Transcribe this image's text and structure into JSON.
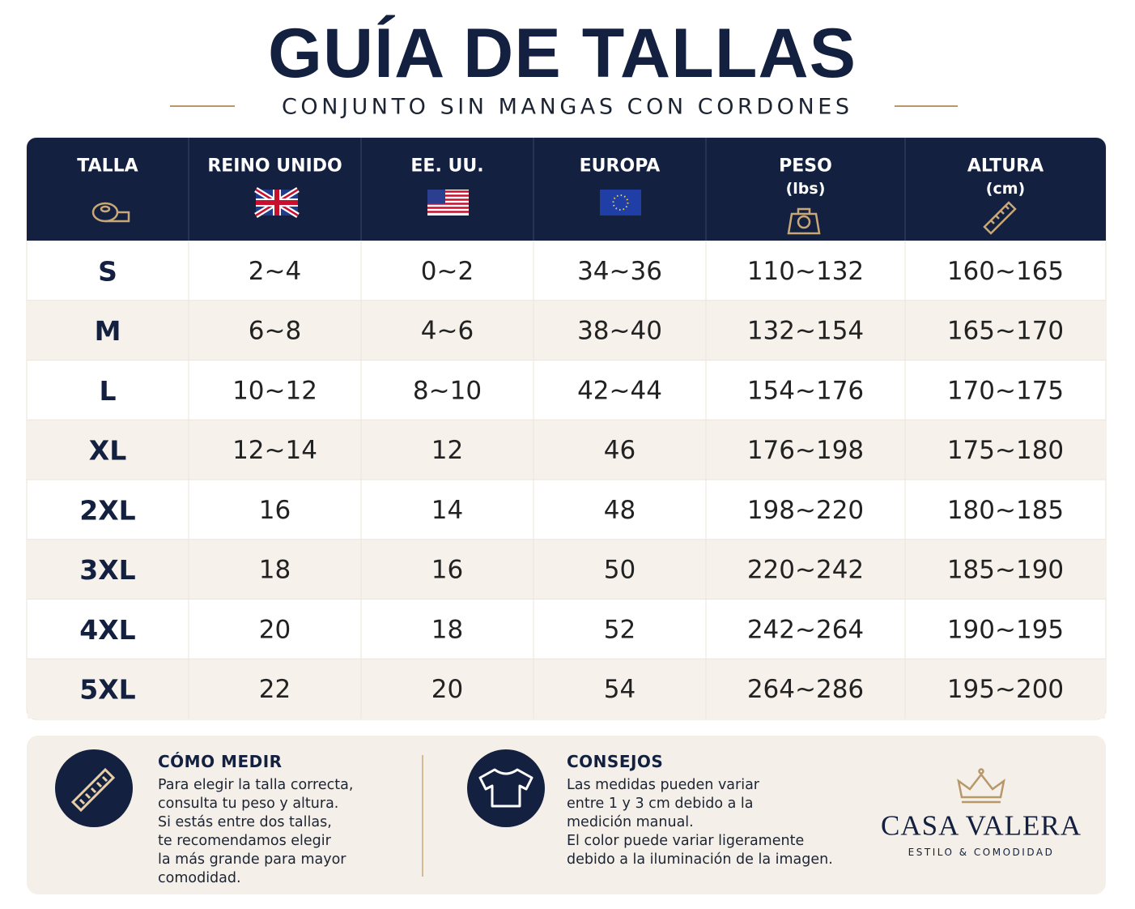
{
  "header": {
    "title": "GUÍA DE TALLAS",
    "subtitle": "CONJUNTO SIN MANGAS CON CORDONES"
  },
  "table": {
    "columns": [
      {
        "name": "TALLA"
      },
      {
        "name": "REINO UNIDO"
      },
      {
        "name": "EE. UU."
      },
      {
        "name": "EUROPA"
      },
      {
        "name": "PESO",
        "unit": "(lbs)"
      },
      {
        "name": "ALTURA",
        "unit": "(cm)"
      }
    ],
    "rows": [
      [
        "S",
        "2~4",
        "0~2",
        "34~36",
        "110~132",
        "160~165"
      ],
      [
        "M",
        "6~8",
        "4~6",
        "38~40",
        "132~154",
        "165~170"
      ],
      [
        "L",
        "10~12",
        "8~10",
        "42~44",
        "154~176",
        "170~175"
      ],
      [
        "XL",
        "12~14",
        "12",
        "46",
        "176~198",
        "175~180"
      ],
      [
        "2XL",
        "16",
        "14",
        "48",
        "198~220",
        "180~185"
      ],
      [
        "3XL",
        "18",
        "16",
        "50",
        "220~242",
        "185~190"
      ],
      [
        "4XL",
        "20",
        "18",
        "52",
        "242~264",
        "190~195"
      ],
      [
        "5XL",
        "22",
        "20",
        "54",
        "264~286",
        "195~200"
      ]
    ]
  },
  "notes": [
    {
      "title": "CÓMO MEDIR",
      "lines": [
        "Para elegir la talla correcta,",
        "consulta tu peso y altura.",
        "Si estás entre dos tallas,",
        "te recomendamos elegir",
        "la más grande para mayor",
        "comodidad."
      ]
    },
    {
      "title": "CONSEJOS",
      "lines": [
        "Las medidas pueden variar",
        "entre 1 y 3 cm debido a la",
        "medición manual.",
        "El color puede variar ligeramente",
        "debido a la iluminación de la imagen."
      ]
    }
  ],
  "brand": {
    "name": "CASA VALERA",
    "tagline": "ESTILO & COMODIDAD"
  }
}
